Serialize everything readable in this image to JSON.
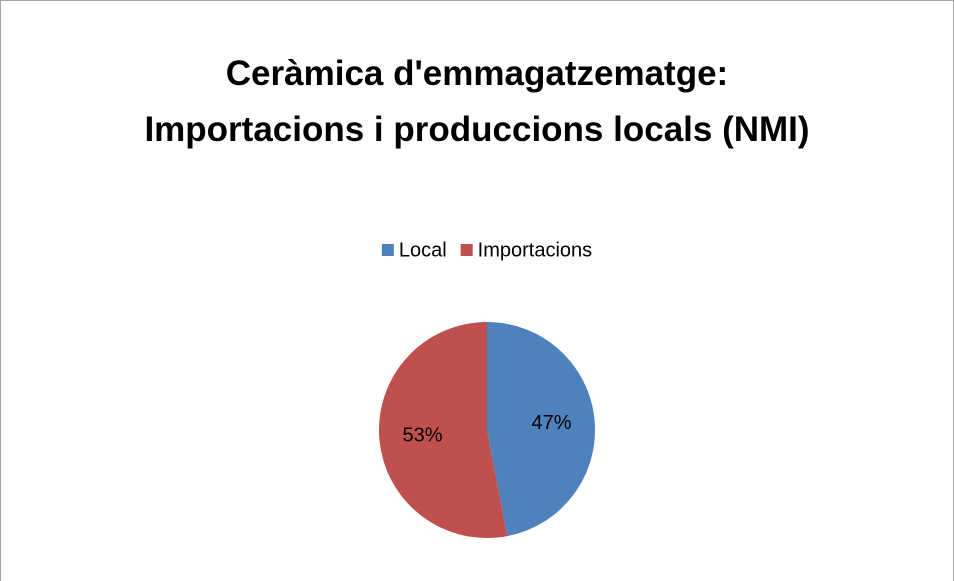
{
  "chart_data": {
    "type": "pie",
    "title": "Ceràmica d'emmagatzematge: Importacions i produccions locals (NMI)",
    "categories": [
      "Local",
      "Importacions"
    ],
    "values": [
      47,
      53
    ],
    "value_labels": [
      "47%",
      "53%"
    ],
    "colors": [
      "#4f81bd",
      "#c0504d"
    ],
    "legend": "top"
  }
}
